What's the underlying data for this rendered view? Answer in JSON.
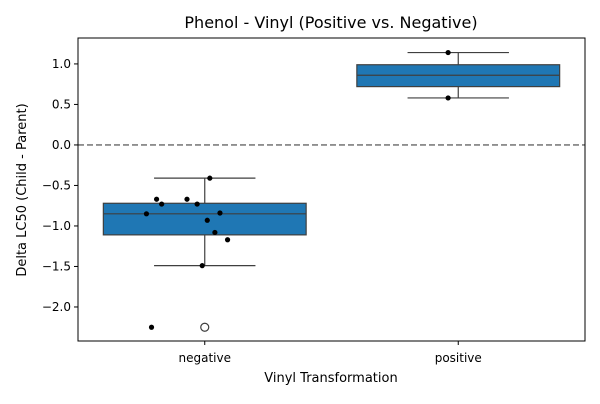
{
  "chart_data": {
    "type": "box",
    "title": "Phenol - Vinyl (Positive vs. Negative)",
    "xlabel": "Vinyl Transformation",
    "ylabel": "Delta LC50 (Child - Parent)",
    "categories": [
      "negative",
      "positive"
    ],
    "ylim": [
      -2.42,
      1.32
    ],
    "yticks": [
      1.0,
      0.5,
      0.0,
      -0.5,
      -1.0,
      -1.5,
      -2.0
    ],
    "ytick_labels": [
      "1.0",
      "0.5",
      "0.0",
      "−0.5",
      "−1.0",
      "−1.5",
      "−2.0"
    ],
    "reference_line": {
      "y": 0.0,
      "style": "dashed",
      "color": "#7f7f7f"
    },
    "box_color": "#1f77b4",
    "point_color": "#000000",
    "boxes": [
      {
        "category": "negative",
        "whisker_low": -1.49,
        "q1": -1.11,
        "median": -0.85,
        "q3": -0.72,
        "whisker_high": -0.41,
        "outliers": [
          -2.25
        ],
        "points": [
          {
            "x": -0.19,
            "y": -0.67
          },
          {
            "x": -0.07,
            "y": -0.67
          },
          {
            "x": 0.02,
            "y": -0.41
          },
          {
            "x": -0.17,
            "y": -0.73
          },
          {
            "x": -0.03,
            "y": -0.73
          },
          {
            "x": -0.23,
            "y": -0.85
          },
          {
            "x": 0.06,
            "y": -0.84
          },
          {
            "x": 0.01,
            "y": -0.93
          },
          {
            "x": 0.04,
            "y": -1.08
          },
          {
            "x": 0.09,
            "y": -1.17
          },
          {
            "x": -0.01,
            "y": -1.49
          },
          {
            "x": -0.21,
            "y": -2.25
          }
        ]
      },
      {
        "category": "positive",
        "whisker_low": 0.58,
        "q1": 0.72,
        "median": 0.86,
        "q3": 0.99,
        "whisker_high": 1.14,
        "outliers": [],
        "points": [
          {
            "x": -0.04,
            "y": 1.14
          },
          {
            "x": -0.04,
            "y": 0.58
          }
        ]
      }
    ]
  }
}
